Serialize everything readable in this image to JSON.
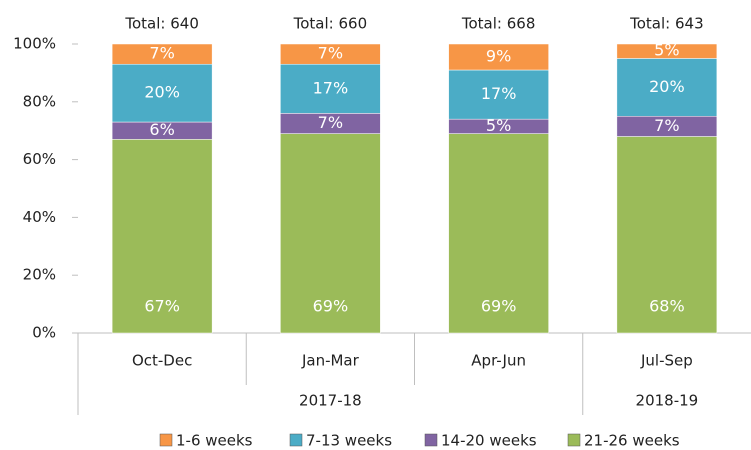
{
  "chart_data": {
    "type": "stacked_bar_100",
    "groups": [
      {
        "label": "2017-18",
        "categories": [
          "Oct-Dec",
          "Jan-Mar",
          "Apr-Jun"
        ]
      },
      {
        "label": "2018-19",
        "categories": [
          "Jul-Sep"
        ]
      }
    ],
    "annotations": [
      "Total: 640",
      "Total: 660",
      "Total: 668",
      "Total: 643"
    ],
    "series": [
      {
        "name": "1-6 weeks",
        "color": "#f79646",
        "values": [
          7,
          7,
          9,
          5
        ],
        "value_labels": [
          "7%",
          "7%",
          "9%",
          "5%"
        ]
      },
      {
        "name": "7-13 weeks",
        "color": "#4bacc6",
        "values": [
          20,
          17,
          17,
          20
        ],
        "value_labels": [
          "20%",
          "17%",
          "17%",
          "20%"
        ]
      },
      {
        "name": "14-20 weeks",
        "color": "#8064a2",
        "values": [
          6,
          7,
          5,
          7
        ],
        "value_labels": [
          "6%",
          "7%",
          "5%",
          "7%"
        ]
      },
      {
        "name": "21-26 weeks",
        "color": "#9bbb59",
        "values": [
          67,
          69,
          69,
          68
        ],
        "value_labels": [
          "67%",
          "69%",
          "69%",
          "68%"
        ]
      }
    ],
    "ylim": [
      0,
      100
    ],
    "yticks": [
      {
        "value": 0,
        "label": "0%"
      },
      {
        "value": 20,
        "label": "20%"
      },
      {
        "value": 40,
        "label": "40%"
      },
      {
        "value": 60,
        "label": "60%"
      },
      {
        "value": 80,
        "label": "80%"
      },
      {
        "value": 100,
        "label": "100%"
      }
    ],
    "grid": false,
    "legend": "bottom"
  }
}
